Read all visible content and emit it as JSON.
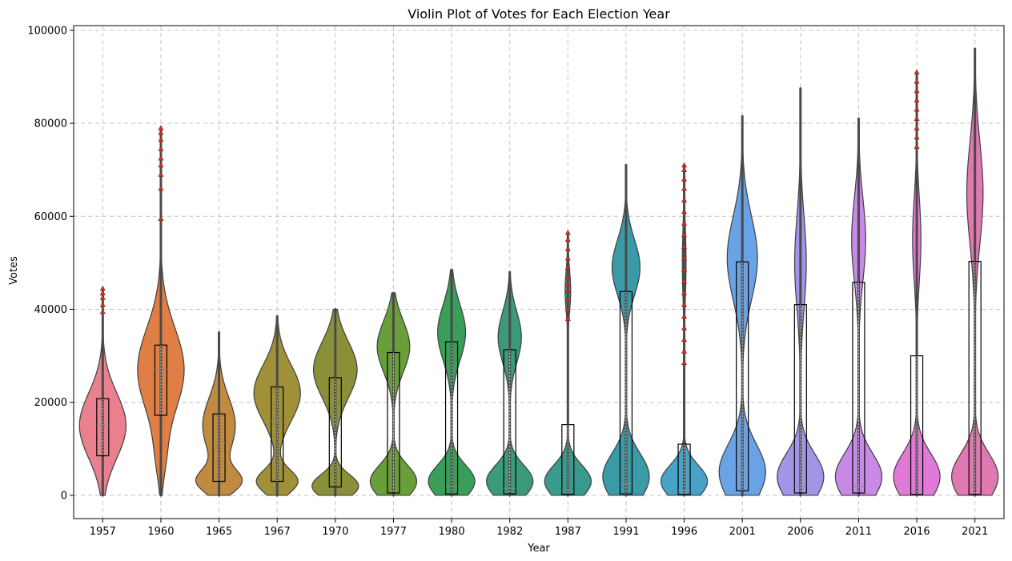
{
  "chart_data": {
    "type": "violin",
    "title": "Violin Plot of Votes for Each Election Year",
    "xlabel": "Year",
    "ylabel": "Votes",
    "ylim": [
      -5000,
      101000
    ],
    "yticks": [
      0,
      20000,
      40000,
      60000,
      80000,
      100000
    ],
    "ytick_labels": [
      "0",
      "20000",
      "40000",
      "60000",
      "80000",
      "100000"
    ],
    "grid": true,
    "categories": [
      "1957",
      "1960",
      "1965",
      "1967",
      "1970",
      "1977",
      "1980",
      "1982",
      "1987",
      "1991",
      "1996",
      "2001",
      "2006",
      "2011",
      "2016",
      "2021"
    ],
    "colors": [
      "#e8808e",
      "#e07f45",
      "#c08a40",
      "#a09038",
      "#8a9038",
      "#6a9e38",
      "#3a9e5a",
      "#3a9a7a",
      "#3a9a8e",
      "#3a9aa6",
      "#48a2c8",
      "#6aa2e6",
      "#a294e6",
      "#c88ae6",
      "#e07ad6",
      "#e078b2"
    ],
    "violins": [
      {
        "year": "1957",
        "min": 0,
        "max": 44500,
        "q1": 8500,
        "median": 15000,
        "q3": 20800,
        "modes": [
          {
            "mu": 15000,
            "sd": 7000,
            "w": 1
          }
        ],
        "outliers": [
          39500,
          41000,
          42500,
          43500,
          44500
        ]
      },
      {
        "year": "1960",
        "min": 0,
        "max": 79000,
        "q1": 17200,
        "median": 27200,
        "q3": 32300,
        "modes": [
          {
            "mu": 27000,
            "sd": 9000,
            "w": 1
          },
          {
            "mu": 8000,
            "sd": 5000,
            "w": 0.15
          }
        ],
        "outliers": [
          59500,
          66000,
          69000,
          71000,
          72500,
          74500,
          76500,
          78000,
          79000
        ]
      },
      {
        "year": "1965",
        "min": 0,
        "max": 35000,
        "q1": 3000,
        "median": 11300,
        "q3": 17500,
        "modes": [
          {
            "mu": 3000,
            "sd": 2500,
            "w": 0.9
          },
          {
            "mu": 15000,
            "sd": 6000,
            "w": 0.7
          }
        ],
        "outliers": []
      },
      {
        "year": "1967",
        "min": 0,
        "max": 38500,
        "q1": 3000,
        "median": 16000,
        "q3": 23300,
        "modes": [
          {
            "mu": 3000,
            "sd": 2500,
            "w": 0.8
          },
          {
            "mu": 22000,
            "sd": 6000,
            "w": 0.9
          }
        ],
        "outliers": []
      },
      {
        "year": "1970",
        "min": 0,
        "max": 40000,
        "q1": 1800,
        "median": 15300,
        "q3": 25300,
        "modes": [
          {
            "mu": 2000,
            "sd": 2500,
            "w": 0.8
          },
          {
            "mu": 27000,
            "sd": 6000,
            "w": 0.75
          }
        ],
        "outliers": []
      },
      {
        "year": "1977",
        "min": 0,
        "max": 43500,
        "q1": 500,
        "median": 8000,
        "q3": 30700,
        "modes": [
          {
            "mu": 3000,
            "sd": 3500,
            "w": 1
          },
          {
            "mu": 32000,
            "sd": 5500,
            "w": 0.7
          }
        ],
        "outliers": []
      },
      {
        "year": "1980",
        "min": 0,
        "max": 48500,
        "q1": 300,
        "median": 2000,
        "q3": 33000,
        "modes": [
          {
            "mu": 3000,
            "sd": 3500,
            "w": 1
          },
          {
            "mu": 35000,
            "sd": 6000,
            "w": 0.6
          }
        ],
        "outliers": []
      },
      {
        "year": "1982",
        "min": 0,
        "max": 48000,
        "q1": 300,
        "median": 1500,
        "q3": 31300,
        "modes": [
          {
            "mu": 3000,
            "sd": 3500,
            "w": 1
          },
          {
            "mu": 34000,
            "sd": 5500,
            "w": 0.5
          }
        ],
        "outliers": []
      },
      {
        "year": "1987",
        "min": 0,
        "max": 56500,
        "q1": 200,
        "median": 1000,
        "q3": 15200,
        "modes": [
          {
            "mu": 3000,
            "sd": 3500,
            "w": 1
          },
          {
            "mu": 44000,
            "sd": 4500,
            "w": 0.12
          }
        ],
        "outliers": [
          38000,
          40000,
          42000,
          44000,
          45500,
          47000,
          49000,
          51000,
          53000,
          55000,
          56500
        ]
      },
      {
        "year": "1991",
        "min": 0,
        "max": 71000,
        "q1": 300,
        "median": 2500,
        "q3": 43800,
        "modes": [
          {
            "mu": 4000,
            "sd": 5000,
            "w": 1
          },
          {
            "mu": 49000,
            "sd": 6000,
            "w": 0.6
          }
        ],
        "outliers": []
      },
      {
        "year": "1996",
        "min": 0,
        "max": 71000,
        "q1": 200,
        "median": 1000,
        "q3": 11000,
        "modes": [
          {
            "mu": 3000,
            "sd": 3500,
            "w": 1
          },
          {
            "mu": 50000,
            "sd": 8000,
            "w": 0.08
          }
        ],
        "outliers": [
          28500,
          31000,
          33500,
          36000,
          38500,
          41000,
          43500,
          46000,
          48500,
          51000,
          53500,
          56000,
          58500,
          61000,
          63500,
          66000,
          68000,
          70000,
          71000
        ]
      },
      {
        "year": "2001",
        "min": 0,
        "max": 81500,
        "q1": 1000,
        "median": 5500,
        "q3": 50200,
        "modes": [
          {
            "mu": 5000,
            "sd": 6000,
            "w": 1
          },
          {
            "mu": 51000,
            "sd": 9000,
            "w": 0.65
          }
        ],
        "outliers": []
      },
      {
        "year": "2006",
        "min": 0,
        "max": 87500,
        "q1": 500,
        "median": 2000,
        "q3": 41000,
        "modes": [
          {
            "mu": 4000,
            "sd": 5000,
            "w": 1
          },
          {
            "mu": 50000,
            "sd": 10000,
            "w": 0.25
          }
        ],
        "outliers": []
      },
      {
        "year": "2011",
        "min": 0,
        "max": 81000,
        "q1": 500,
        "median": 2000,
        "q3": 45800,
        "modes": [
          {
            "mu": 4000,
            "sd": 5000,
            "w": 1
          },
          {
            "mu": 55000,
            "sd": 9000,
            "w": 0.3
          }
        ],
        "outliers": []
      },
      {
        "year": "2016",
        "min": 0,
        "max": 91000,
        "q1": 200,
        "median": 1000,
        "q3": 30000,
        "modes": [
          {
            "mu": 4000,
            "sd": 5000,
            "w": 1
          },
          {
            "mu": 55000,
            "sd": 9000,
            "w": 0.18
          }
        ],
        "outliers": [
          75000,
          77000,
          79000,
          81000,
          83000,
          85000,
          87000,
          89000,
          91000
        ]
      },
      {
        "year": "2021",
        "min": 0,
        "max": 96000,
        "q1": 200,
        "median": 2000,
        "q3": 50300,
        "modes": [
          {
            "mu": 4000,
            "sd": 5000,
            "w": 1
          },
          {
            "mu": 65000,
            "sd": 11000,
            "w": 0.35
          }
        ],
        "outliers": []
      }
    ]
  }
}
